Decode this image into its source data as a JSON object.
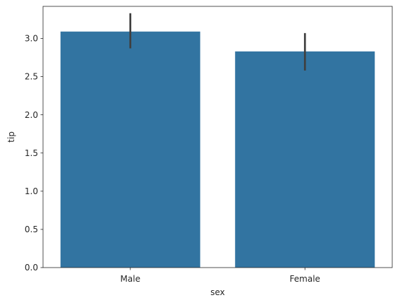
{
  "chart_data": {
    "type": "bar",
    "xlabel": "sex",
    "ylabel": "tip",
    "categories": [
      "Male",
      "Female"
    ],
    "values": [
      3.09,
      2.83
    ],
    "error_low": [
      2.87,
      2.58
    ],
    "error_high": [
      3.33,
      3.07
    ],
    "ylim": [
      0,
      3.42
    ],
    "yticks": [
      0.0,
      0.5,
      1.0,
      1.5,
      2.0,
      2.5,
      3.0
    ],
    "ytick_labels": [
      "0.0",
      "0.5",
      "1.0",
      "1.5",
      "2.0",
      "2.5",
      "3.0"
    ],
    "grid": false,
    "colors": {
      "bar": "#3274a1",
      "error": "#3f3f3f",
      "axis": "#262626"
    }
  }
}
